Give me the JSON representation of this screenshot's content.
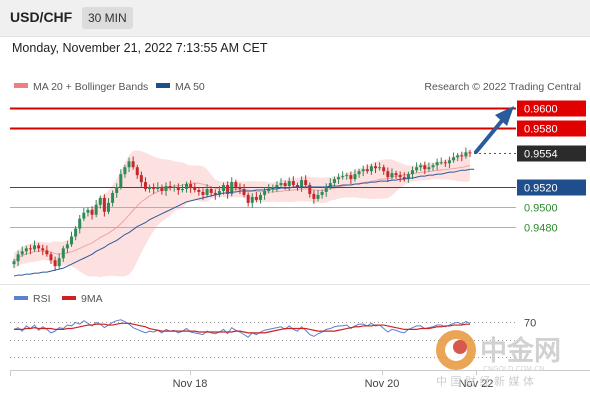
{
  "header": {
    "symbol": "USD/CHF",
    "timeframe": "30 MIN",
    "datetime": "Monday, November 21, 2022 7:13:55 AM CET"
  },
  "chart_data": {
    "type": "candlestick",
    "credit": "Research © 2022 Trading Central",
    "legend": [
      {
        "label": "MA 20 + Bollinger Bands",
        "color": "#f08080"
      },
      {
        "label": "MA 50",
        "color": "#1f4e8c"
      }
    ],
    "x_ticks": [
      "Nov 18",
      "Nov 20",
      "Nov 22"
    ],
    "price_levels": [
      {
        "value": "0.9600",
        "kind": "resistance"
      },
      {
        "value": "0.9580",
        "kind": "resistance"
      },
      {
        "value": "0.9554",
        "kind": "current"
      },
      {
        "value": "0.9520",
        "kind": "pivot"
      },
      {
        "value": "0.9500",
        "kind": "support"
      },
      {
        "value": "0.9480",
        "kind": "support"
      }
    ],
    "candles_close": [
      0.9445,
      0.9452,
      0.9455,
      0.9458,
      0.9457,
      0.9461,
      0.9458,
      0.9456,
      0.9452,
      0.9446,
      0.944,
      0.9448,
      0.9458,
      0.9462,
      0.947,
      0.9478,
      0.9488,
      0.9494,
      0.9497,
      0.9492,
      0.9502,
      0.9509,
      0.9495,
      0.9504,
      0.9514,
      0.952,
      0.9533,
      0.954,
      0.9546,
      0.954,
      0.9532,
      0.9525,
      0.9518,
      0.952,
      0.9518,
      0.952,
      0.9516,
      0.9521,
      0.9519,
      0.952,
      0.9517,
      0.9518,
      0.9523,
      0.9519,
      0.9517,
      0.9515,
      0.9512,
      0.9518,
      0.9514,
      0.9512,
      0.9516,
      0.9522,
      0.9513,
      0.9525,
      0.952,
      0.9518,
      0.9512,
      0.9504,
      0.951,
      0.9507,
      0.9512,
      0.9516,
      0.9518,
      0.952,
      0.9522,
      0.9524,
      0.9521,
      0.9526,
      0.9522,
      0.952,
      0.9527,
      0.9522,
      0.9513,
      0.9508,
      0.9512,
      0.9515,
      0.952,
      0.9524,
      0.9528,
      0.953,
      0.9531,
      0.9532,
      0.9528,
      0.9533,
      0.9536,
      0.9538,
      0.9536,
      0.9541,
      0.9539,
      0.954,
      0.9536,
      0.953,
      0.9534,
      0.9532,
      0.953,
      0.9528,
      0.9533,
      0.9537,
      0.954,
      0.9542,
      0.9538,
      0.954,
      0.9542,
      0.9545,
      0.9545,
      0.9544,
      0.9547,
      0.955,
      0.9552,
      0.9551,
      0.9555,
      0.9554
    ],
    "ma50": [
      0.943,
      0.9431,
      0.9431,
      0.9432,
      0.9432,
      0.9433,
      0.9433,
      0.9434,
      0.9434,
      0.9435,
      0.9436,
      0.9437,
      0.9438,
      0.944,
      0.9442,
      0.9444,
      0.9446,
      0.9448,
      0.945,
      0.9452,
      0.9455,
      0.9457,
      0.9459,
      0.9462,
      0.9464,
      0.9466,
      0.9469,
      0.9472,
      0.9474,
      0.9477,
      0.948,
      0.9482,
      0.9484,
      0.9487,
      0.9489,
      0.9491,
      0.9493,
      0.9495,
      0.9497,
      0.9499,
      0.9501,
      0.9503,
      0.9505,
      0.9506,
      0.9507,
      0.9508,
      0.9509,
      0.951,
      0.9511,
      0.9512,
      0.9513,
      0.9514,
      0.9514,
      0.9515,
      0.9515,
      0.9516,
      0.9516,
      0.9516,
      0.9516,
      0.9517,
      0.9517,
      0.9517,
      0.9518,
      0.9518,
      0.9518,
      0.9519,
      0.9519,
      0.9519,
      0.952,
      0.952,
      0.952,
      0.952,
      0.952,
      0.952,
      0.952,
      0.952,
      0.952,
      0.9521,
      0.9521,
      0.9521,
      0.9522,
      0.9522,
      0.9522,
      0.9523,
      0.9523,
      0.9524,
      0.9524,
      0.9525,
      0.9525,
      0.9526,
      0.9526,
      0.9526,
      0.9527,
      0.9527,
      0.9528,
      0.9528,
      0.9529,
      0.9529,
      0.953,
      0.9531,
      0.9531,
      0.9532,
      0.9532,
      0.9533,
      0.9533,
      0.9534,
      0.9535,
      0.9535,
      0.9536,
      0.9537,
      0.9537,
      0.9538,
      0.9538
    ],
    "y_range": [
      0.9425,
      0.9612
    ],
    "rsi": {
      "label": "RSI",
      "ma_label": "9MA",
      "level": "70",
      "range": [
        20,
        90
      ],
      "values": [
        62,
        64,
        60,
        66,
        63,
        67,
        61,
        65,
        62,
        58,
        60,
        64,
        63,
        67,
        66,
        70,
        68,
        72,
        69,
        66,
        70,
        68,
        64,
        67,
        70,
        72,
        73,
        71,
        68,
        64,
        62,
        60,
        58,
        60,
        59,
        61,
        58,
        62,
        60,
        61,
        58,
        60,
        63,
        59,
        58,
        57,
        56,
        60,
        58,
        57,
        59,
        62,
        57,
        64,
        61,
        59,
        56,
        53,
        58,
        56,
        59,
        61,
        62,
        63,
        64,
        65,
        62,
        66,
        62,
        60,
        65,
        61,
        56,
        54,
        57,
        59,
        62,
        63,
        65,
        66,
        66,
        67,
        63,
        66,
        68,
        68,
        66,
        69,
        66,
        67,
        63,
        59,
        62,
        61,
        59,
        58,
        62,
        64,
        66,
        66,
        63,
        64,
        65,
        67,
        67,
        65,
        67,
        69,
        70,
        68,
        71,
        69
      ],
      "ma9": [
        62,
        62,
        62,
        63,
        63,
        64,
        63,
        63,
        63,
        63,
        62,
        62,
        62,
        63,
        63,
        64,
        65,
        66,
        67,
        67,
        68,
        68,
        68,
        67,
        67,
        68,
        69,
        69,
        69,
        68,
        67,
        66,
        65,
        63,
        62,
        61,
        60,
        60,
        60,
        60,
        60,
        60,
        60,
        60,
        60,
        59,
        59,
        59,
        59,
        59,
        59,
        59,
        59,
        59,
        60,
        60,
        59,
        58,
        58,
        58,
        58,
        58,
        59,
        60,
        61,
        62,
        63,
        63,
        63,
        63,
        63,
        63,
        62,
        61,
        60,
        60,
        60,
        60,
        60,
        61,
        62,
        63,
        64,
        65,
        65,
        66,
        66,
        66,
        67,
        67,
        67,
        66,
        65,
        64,
        63,
        62,
        62,
        62,
        62,
        63,
        63,
        63,
        64,
        65,
        65,
        66,
        66,
        67,
        67,
        67,
        68,
        68
      ]
    }
  },
  "watermark": {
    "brand": "中金网",
    "domain": "CNGOLD.COM.CN",
    "tagline": "中 国 财 经 新 媒 体"
  }
}
